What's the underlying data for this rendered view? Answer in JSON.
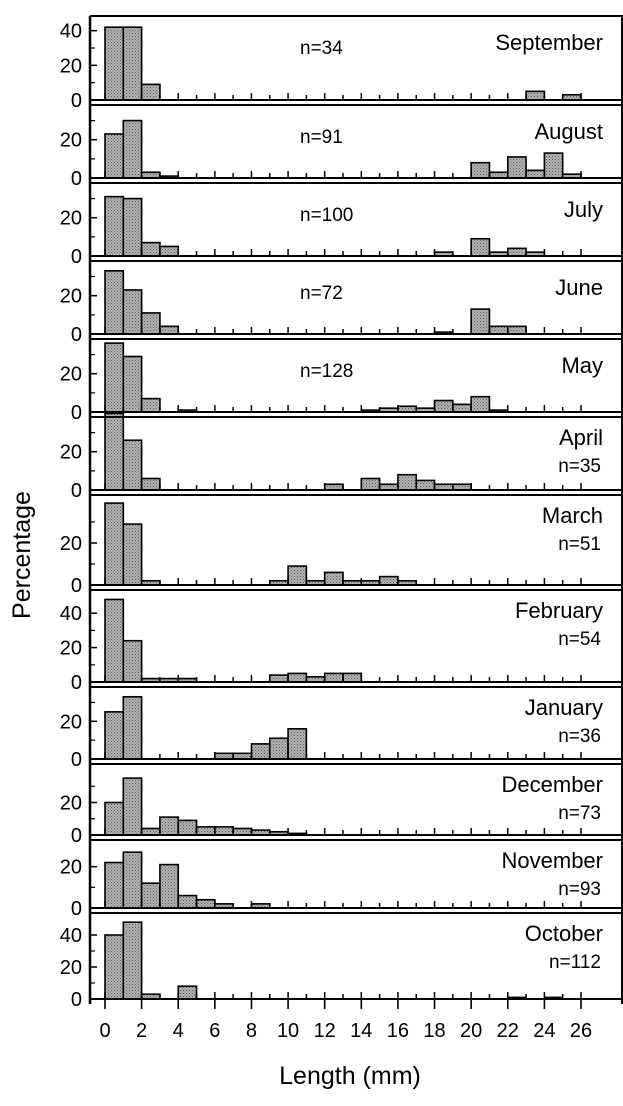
{
  "chart_data": {
    "type": "bar",
    "ylabel": "Percentage",
    "xlabel": "Length (mm)",
    "x_ticks": [
      "0",
      "2",
      "4",
      "6",
      "8",
      "10",
      "12",
      "14",
      "16",
      "18",
      "20",
      "22",
      "24",
      "26"
    ],
    "xlim": [
      -1,
      27
    ],
    "bin_width": 1,
    "grid": false,
    "bar_color": "#9a9a9a",
    "panels": [
      {
        "month": "September",
        "n_label": "n=34",
        "ylim": [
          0,
          45
        ],
        "yticks": [
          "0",
          "20",
          "40"
        ],
        "bins": [
          0.5,
          1.5,
          2.5,
          23.5,
          25.5
        ],
        "values": [
          42,
          42,
          9,
          5,
          3
        ]
      },
      {
        "month": "August",
        "n_label": "n=91",
        "ylim": [
          0,
          35
        ],
        "yticks": [
          "0",
          "20"
        ],
        "bins": [
          0.5,
          1.5,
          2.5,
          3.5,
          20.5,
          21.5,
          22.5,
          23.5,
          24.5,
          25.5
        ],
        "values": [
          23,
          30,
          3,
          1,
          8,
          3,
          11,
          4,
          13,
          2
        ]
      },
      {
        "month": "July",
        "n_label": "n=100",
        "ylim": [
          0,
          35
        ],
        "yticks": [
          "0",
          "20"
        ],
        "bins": [
          0.5,
          1.5,
          2.5,
          3.5,
          18.5,
          20.5,
          21.5,
          22.5,
          23.5
        ],
        "values": [
          31,
          30,
          7,
          5,
          2,
          9,
          2,
          4,
          2
        ]
      },
      {
        "month": "June",
        "n_label": "n=72",
        "ylim": [
          0,
          35
        ],
        "yticks": [
          "0",
          "20"
        ],
        "bins": [
          0.5,
          1.5,
          2.5,
          3.5,
          18.5,
          20.5,
          21.5,
          22.5
        ],
        "values": [
          33,
          23,
          11,
          4,
          1,
          13,
          4,
          4
        ]
      },
      {
        "month": "May",
        "n_label": "n=128",
        "ylim": [
          0,
          35
        ],
        "yticks": [
          "0",
          "20"
        ],
        "bins": [
          0.5,
          1.5,
          2.5,
          4.5,
          14.5,
          15.5,
          16.5,
          17.5,
          18.5,
          19.5,
          20.5,
          21.5
        ],
        "values": [
          36,
          29,
          7,
          1,
          1,
          2,
          3,
          2,
          6,
          4,
          8,
          1
        ]
      },
      {
        "month": "April",
        "n_label": "n=35",
        "ylim": [
          0,
          35
        ],
        "yticks": [
          "0",
          "20"
        ],
        "bins": [
          0.5,
          1.5,
          2.5,
          12.5,
          14.5,
          15.5,
          16.5,
          17.5,
          18.5,
          19.5
        ],
        "values": [
          40,
          26,
          6,
          3,
          6,
          3,
          8,
          5,
          3,
          3
        ]
      },
      {
        "month": "March",
        "n_label": "n=51",
        "ylim": [
          0,
          40
        ],
        "yticks": [
          "0",
          "20"
        ],
        "bins": [
          0.5,
          1.5,
          2.5,
          9.5,
          10.5,
          11.5,
          12.5,
          13.5,
          14.5,
          15.5,
          16.5
        ],
        "values": [
          39,
          29,
          2,
          2,
          9,
          2,
          6,
          2,
          2,
          4,
          2
        ]
      },
      {
        "month": "February",
        "n_label": "n=54",
        "ylim": [
          0,
          50
        ],
        "yticks": [
          "0",
          "20",
          "40"
        ],
        "bins": [
          0.5,
          1.5,
          2.5,
          3.5,
          4.5,
          9.5,
          10.5,
          11.5,
          12.5,
          13.5
        ],
        "values": [
          48,
          24,
          2,
          2,
          2,
          4,
          5,
          3,
          5,
          5
        ]
      },
      {
        "month": "January",
        "n_label": "n=36",
        "ylim": [
          0,
          35
        ],
        "yticks": [
          "0",
          "20"
        ],
        "bins": [
          0.5,
          1.5,
          6.5,
          7.5,
          8.5,
          9.5,
          10.5
        ],
        "values": [
          25,
          33,
          3,
          3,
          8,
          11,
          16
        ]
      },
      {
        "month": "December",
        "n_label": "n=73",
        "ylim": [
          0,
          40
        ],
        "yticks": [
          "0",
          "20"
        ],
        "bins": [
          0.5,
          1.5,
          2.5,
          3.5,
          4.5,
          5.5,
          6.5,
          7.5,
          8.5,
          9.5,
          10.5
        ],
        "values": [
          20,
          35,
          4,
          11,
          9,
          5,
          5,
          4,
          3,
          2,
          1
        ]
      },
      {
        "month": "November",
        "n_label": "n=93",
        "ylim": [
          0,
          30
        ],
        "yticks": [
          "0",
          "20"
        ],
        "bins": [
          0.5,
          1.5,
          2.5,
          3.5,
          4.5,
          5.5,
          6.5,
          8.5
        ],
        "values": [
          22,
          27,
          12,
          21,
          6,
          4,
          2,
          2
        ]
      },
      {
        "month": "October",
        "n_label": "n=112",
        "ylim": [
          0,
          50
        ],
        "yticks": [
          "0",
          "20",
          "40"
        ],
        "bins": [
          0.5,
          1.5,
          2.5,
          4.5,
          22.5,
          24.5
        ],
        "values": [
          40,
          48,
          3,
          8,
          1,
          1
        ]
      }
    ]
  }
}
